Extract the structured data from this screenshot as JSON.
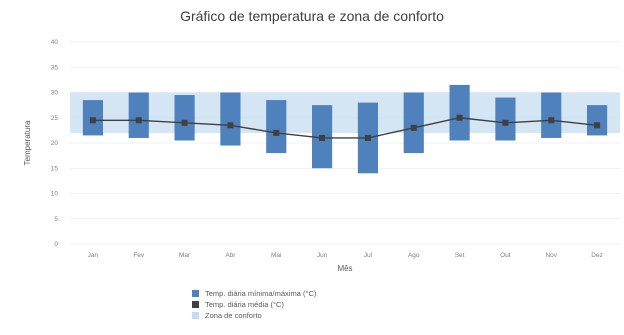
{
  "chart_data": {
    "type": "box",
    "title": "Gráfico de temperatura e zona de conforto",
    "xlabel": "Mês",
    "ylabel": "Temperatura",
    "ylim": [
      0,
      40
    ],
    "y_ticks": [
      0,
      5,
      10,
      15,
      20,
      25,
      30,
      35,
      40
    ],
    "categories": [
      "Jan",
      "Fev",
      "Mar",
      "Abr",
      "Mai",
      "Jun",
      "Jul",
      "Ago",
      "Set",
      "Out",
      "Nov",
      "Dez"
    ],
    "series": [
      {
        "kind": "box",
        "low": [
          21.5,
          21.0,
          20.5,
          19.5,
          18.0,
          15.0,
          14.0,
          18.0,
          20.5,
          20.5,
          21.0,
          21.5
        ],
        "high": [
          28.5,
          30.0,
          29.5,
          30.0,
          28.5,
          27.5,
          28.0,
          30.0,
          31.5,
          29.0,
          30.0,
          27.5
        ]
      },
      {
        "kind": "line",
        "values": [
          24.5,
          24.5,
          24.0,
          23.5,
          22.0,
          21.0,
          21.0,
          23.0,
          25.0,
          24.0,
          24.5,
          23.5
        ]
      },
      {
        "kind": "band",
        "low": 22.0,
        "high": 30.0
      }
    ],
    "legend": {
      "position": "bottom",
      "entries": [
        "Temp. diária mínima/máxima (°C)",
        "Temp. diária média (°C)",
        "Zona de conforto"
      ]
    },
    "colors": {
      "box": "#4f81bd",
      "line": "#404040",
      "band": "#c5dcf0",
      "grid": "#e6e6e6"
    }
  }
}
